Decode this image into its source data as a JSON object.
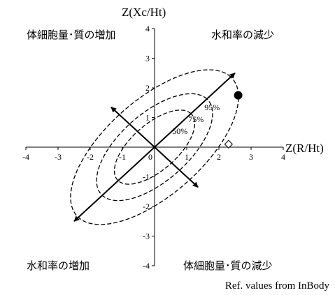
{
  "chart_data": {
    "type": "scatter",
    "title": "",
    "xlabel": "Z(R/Ht)",
    "ylabel": "Z(Xc/Ht)",
    "xlim": [
      -4,
      4
    ],
    "ylim": [
      -4,
      4
    ],
    "x_ticks": [
      "-4",
      "-3",
      "-2",
      "-1",
      "0",
      "1",
      "2",
      "3",
      "4"
    ],
    "y_ticks": [
      "4",
      "3",
      "2",
      "1",
      "0",
      "-1",
      "-2",
      "-3",
      "-4"
    ],
    "grid": false,
    "tolerance_ellipses": [
      {
        "label": "50%",
        "rx": 1.6,
        "ry": 0.75,
        "angle_deg": 45
      },
      {
        "label": "75%",
        "rx": 2.3,
        "ry": 1.1,
        "angle_deg": 45
      },
      {
        "label": "95%",
        "rx": 3.35,
        "ry": 1.55,
        "angle_deg": 45
      }
    ],
    "vectors": [
      {
        "from": [
          -2.5,
          -2.5
        ],
        "to": [
          2.5,
          2.5
        ],
        "arrow": "both"
      },
      {
        "from": [
          -1.35,
          1.35
        ],
        "to": [
          1.35,
          -1.35
        ],
        "arrow": "both"
      }
    ],
    "points": [
      {
        "x": 2.6,
        "y": 1.75,
        "marker": "filled-circle",
        "color": "#000000"
      },
      {
        "x": 2.3,
        "y": 0.1,
        "marker": "open-diamond",
        "color": "#000000"
      }
    ],
    "quadrant_labels": {
      "top_left": "体細胞量･質の増加",
      "top_right": "水和率の減少",
      "bottom_left": "水和率の増加",
      "bottom_right": "体細胞量･質の減少"
    },
    "footnote": "Ref. values from InBody"
  }
}
